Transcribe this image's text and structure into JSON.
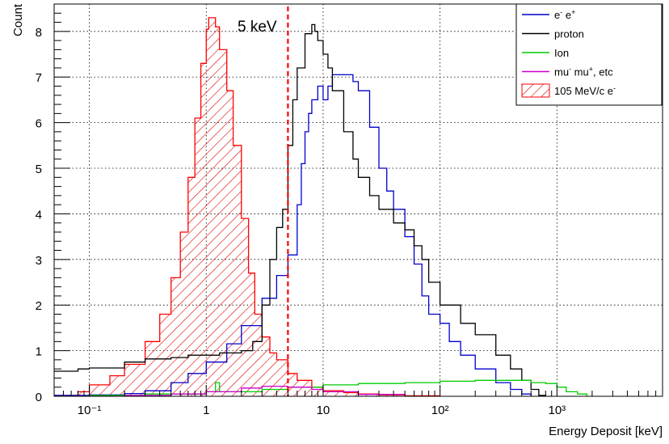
{
  "chart_data": {
    "type": "line",
    "title": "",
    "xlabel": "Energy Deposit [keV]",
    "ylabel": "Count",
    "x_scale": "log",
    "xlim": [
      0.05,
      8000
    ],
    "ylim": [
      0,
      8.6
    ],
    "grid": true,
    "legend_position": "top-right",
    "x_ticks": [
      {
        "value": 0.1,
        "label": "10⁻¹"
      },
      {
        "value": 1,
        "label": "1"
      },
      {
        "value": 10,
        "label": "10"
      },
      {
        "value": 100,
        "label": "10²"
      },
      {
        "value": 1000,
        "label": "10³"
      }
    ],
    "y_ticks": [
      {
        "value": 0,
        "label": "0"
      },
      {
        "value": 1,
        "label": "1"
      },
      {
        "value": 2,
        "label": "2"
      },
      {
        "value": 3,
        "label": "3"
      },
      {
        "value": 4,
        "label": "4"
      },
      {
        "value": 5,
        "label": "5"
      },
      {
        "value": 6,
        "label": "6"
      },
      {
        "value": 7,
        "label": "7"
      },
      {
        "value": 8,
        "label": "8"
      }
    ],
    "threshold": {
      "x": 5,
      "label": "5 keV",
      "color": "#ff0000"
    },
    "series": [
      {
        "name": "105 MeV/c e⁻",
        "legend_label": "105 MeV/c e",
        "legend_sup": "-",
        "color": "#ff0000",
        "hatched": true,
        "points": [
          [
            0.05,
            0.02
          ],
          [
            0.08,
            0.1
          ],
          [
            0.1,
            0.25
          ],
          [
            0.15,
            0.45
          ],
          [
            0.2,
            0.7
          ],
          [
            0.3,
            1.2
          ],
          [
            0.4,
            1.8
          ],
          [
            0.5,
            2.6
          ],
          [
            0.6,
            3.6
          ],
          [
            0.7,
            4.8
          ],
          [
            0.8,
            6.1
          ],
          [
            0.9,
            7.3
          ],
          [
            1.0,
            8.05
          ],
          [
            1.05,
            8.3
          ],
          [
            1.1,
            8.3
          ],
          [
            1.2,
            8.1
          ],
          [
            1.3,
            7.6
          ],
          [
            1.5,
            6.7
          ],
          [
            1.7,
            5.5
          ],
          [
            2.0,
            3.9
          ],
          [
            2.3,
            2.7
          ],
          [
            2.6,
            1.8
          ],
          [
            3.0,
            1.3
          ],
          [
            3.5,
            0.95
          ],
          [
            4.0,
            0.8
          ],
          [
            5.0,
            0.5
          ],
          [
            6.0,
            0.35
          ],
          [
            8.0,
            0.2
          ],
          [
            10,
            0.12
          ],
          [
            15,
            0.08
          ],
          [
            20,
            0.05
          ],
          [
            30,
            0.03
          ],
          [
            50,
            0.01
          ],
          [
            100,
            0.0
          ]
        ]
      },
      {
        "name": "e⁻ e⁺",
        "legend_label": "e",
        "legend_sup": "-",
        "legend_label2": " e",
        "legend_sup2": "+",
        "color": "#0000cc",
        "hatched": false,
        "points": [
          [
            0.05,
            0.02
          ],
          [
            0.1,
            0.03
          ],
          [
            0.2,
            0.06
          ],
          [
            0.3,
            0.12
          ],
          [
            0.5,
            0.3
          ],
          [
            0.7,
            0.5
          ],
          [
            1.0,
            0.75
          ],
          [
            1.5,
            1.15
          ],
          [
            2.0,
            1.55
          ],
          [
            3.0,
            2.15
          ],
          [
            4.0,
            2.65
          ],
          [
            5.0,
            3.1
          ],
          [
            6.0,
            4.2
          ],
          [
            6.5,
            5.1
          ],
          [
            7.0,
            5.8
          ],
          [
            7.5,
            6.2
          ],
          [
            8.0,
            6.5
          ],
          [
            9.0,
            6.8
          ],
          [
            10,
            6.5
          ],
          [
            11,
            6.8
          ],
          [
            12,
            7.05
          ],
          [
            15,
            7.05
          ],
          [
            18,
            6.9
          ],
          [
            20,
            6.7
          ],
          [
            25,
            5.9
          ],
          [
            30,
            5.0
          ],
          [
            35,
            4.5
          ],
          [
            40,
            4.1
          ],
          [
            50,
            3.5
          ],
          [
            60,
            2.9
          ],
          [
            70,
            2.2
          ],
          [
            80,
            1.8
          ],
          [
            100,
            1.6
          ],
          [
            120,
            1.2
          ],
          [
            150,
            0.9
          ],
          [
            200,
            0.6
          ],
          [
            300,
            0.3
          ],
          [
            400,
            0.15
          ],
          [
            500,
            0.05
          ],
          [
            600,
            0.0
          ]
        ]
      },
      {
        "name": "proton",
        "legend_label": "proton",
        "color": "#000000",
        "hatched": false,
        "points": [
          [
            0.05,
            0.55
          ],
          [
            0.08,
            0.6
          ],
          [
            0.1,
            0.62
          ],
          [
            0.2,
            0.75
          ],
          [
            0.3,
            0.82
          ],
          [
            0.5,
            0.85
          ],
          [
            0.7,
            0.9
          ],
          [
            1.0,
            0.9
          ],
          [
            1.3,
            0.95
          ],
          [
            2.0,
            1.0
          ],
          [
            2.5,
            1.2
          ],
          [
            3.0,
            2.0
          ],
          [
            3.5,
            3.0
          ],
          [
            4.0,
            3.7
          ],
          [
            4.5,
            4.1
          ],
          [
            5.0,
            5.5
          ],
          [
            5.5,
            6.5
          ],
          [
            6.0,
            7.2
          ],
          [
            7.0,
            7.95
          ],
          [
            8.0,
            8.15
          ],
          [
            8.5,
            8.0
          ],
          [
            9.0,
            7.8
          ],
          [
            10,
            7.5
          ],
          [
            11,
            7.2
          ],
          [
            12,
            6.7
          ],
          [
            15,
            5.8
          ],
          [
            18,
            5.2
          ],
          [
            20,
            4.8
          ],
          [
            25,
            4.4
          ],
          [
            30,
            4.1
          ],
          [
            40,
            3.8
          ],
          [
            50,
            3.65
          ],
          [
            60,
            3.3
          ],
          [
            70,
            3.0
          ],
          [
            80,
            2.5
          ],
          [
            100,
            2.0
          ],
          [
            150,
            1.6
          ],
          [
            200,
            1.35
          ],
          [
            300,
            0.9
          ],
          [
            400,
            0.6
          ],
          [
            500,
            0.35
          ],
          [
            600,
            0.15
          ],
          [
            700,
            0.02
          ],
          [
            800,
            0.0
          ]
        ]
      },
      {
        "name": "Ion",
        "legend_label": "Ion",
        "color": "#00cc00",
        "hatched": false,
        "points": [
          [
            0.05,
            0.0
          ],
          [
            0.1,
            0.02
          ],
          [
            0.3,
            0.05
          ],
          [
            1.0,
            0.1
          ],
          [
            1.2,
            0.3
          ],
          [
            1.3,
            0.1
          ],
          [
            2.0,
            0.1
          ],
          [
            3.0,
            0.15
          ],
          [
            5.0,
            0.2
          ],
          [
            10,
            0.25
          ],
          [
            20,
            0.28
          ],
          [
            50,
            0.3
          ],
          [
            100,
            0.33
          ],
          [
            200,
            0.35
          ],
          [
            400,
            0.35
          ],
          [
            600,
            0.3
          ],
          [
            800,
            0.28
          ],
          [
            1000,
            0.2
          ],
          [
            1200,
            0.1
          ],
          [
            1500,
            0.05
          ],
          [
            1800,
            0.0
          ]
        ]
      },
      {
        "name": "mu⁻ mu⁺, etc",
        "legend_label": "mu",
        "legend_sup": "-",
        "legend_label2": " mu",
        "legend_sup2": "+",
        "legend_label3": ", etc",
        "color": "#cc00cc",
        "hatched": false,
        "points": [
          [
            0.05,
            0.0
          ],
          [
            0.2,
            0.02
          ],
          [
            0.5,
            0.05
          ],
          [
            1.0,
            0.1
          ],
          [
            2.0,
            0.18
          ],
          [
            3.0,
            0.22
          ],
          [
            5.0,
            0.2
          ],
          [
            8.0,
            0.15
          ],
          [
            10,
            0.1
          ],
          [
            20,
            0.04
          ],
          [
            50,
            0.0
          ]
        ]
      }
    ]
  }
}
